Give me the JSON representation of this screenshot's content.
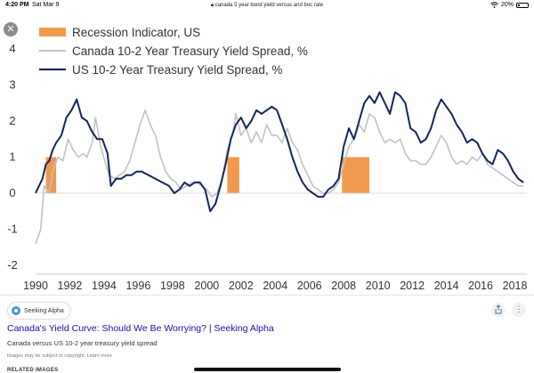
{
  "status_bar": {
    "time": "4:20 PM",
    "date": "Sat Mar 9",
    "url": "canada 5 year bond yield versus and boc rate",
    "battery": "20%"
  },
  "viewer": {
    "close_glyph": "✕",
    "share_icon": "share-icon",
    "more_glyph": "⋮"
  },
  "result": {
    "source": "Seeking Alpha",
    "title": "Canada's Yield Curve: Should We Be Worrying? | Seeking Alpha",
    "snippet": "Canada versus US 10-2 year treasury yield spread",
    "copyright": "Images may be subject to copyright. Learn more",
    "related_heading": "RELATED IMAGES"
  },
  "colors": {
    "recession": "#f09a50",
    "canada": "#c2c2c2",
    "us": "#12265c"
  },
  "chart_data": {
    "type": "line",
    "title": "",
    "xlabel": "",
    "ylabel": "",
    "xlim": [
      1990,
      2018.7
    ],
    "ylim": [
      -2,
      4
    ],
    "x_ticks": [
      "1990",
      "1992",
      "1994",
      "1996",
      "1998",
      "2000",
      "2002",
      "2004",
      "2006",
      "2008",
      "2010",
      "2012",
      "2014",
      "2016",
      "2018"
    ],
    "y_ticks": [
      "4",
      "3",
      "2",
      "1",
      "0",
      "-1",
      "-2"
    ],
    "legend": [
      "Recession Indicator, US",
      "Canada 10-2 Year Treasury Yield Spread, %",
      "US 10-2 Year Treasury Yield Spread, %"
    ],
    "recessions": [
      {
        "start": 1990.6,
        "end": 1991.2,
        "value": 1
      },
      {
        "start": 2001.2,
        "end": 2001.9,
        "value": 1
      },
      {
        "start": 2007.9,
        "end": 2009.5,
        "value": 1
      }
    ],
    "series": [
      {
        "name": "Canada 10-2 Year Treasury Yield Spread, %",
        "x": [
          1990.0,
          1990.3,
          1990.5,
          1990.8,
          1991.0,
          1991.3,
          1991.6,
          1991.9,
          1992.2,
          1992.5,
          1992.8,
          1993.0,
          1993.3,
          1993.5,
          1993.8,
          1994.1,
          1994.3,
          1994.6,
          1994.9,
          1995.2,
          1995.5,
          1995.8,
          1996.1,
          1996.4,
          1996.7,
          1997.0,
          1997.3,
          1997.6,
          1997.9,
          1998.2,
          1998.5,
          1998.8,
          1999.1,
          1999.4,
          1999.7,
          2000.0,
          2000.3,
          2000.6,
          2000.9,
          2001.2,
          2001.5,
          2001.7,
          2002.0,
          2002.3,
          2002.6,
          2002.9,
          2003.2,
          2003.5,
          2003.8,
          2004.1,
          2004.4,
          2004.7,
          2005.0,
          2005.3,
          2005.6,
          2005.9,
          2006.2,
          2006.5,
          2006.8,
          2007.1,
          2007.4,
          2007.7,
          2008.0,
          2008.3,
          2008.6,
          2008.9,
          2009.2,
          2009.5,
          2009.8,
          2010.1,
          2010.4,
          2010.7,
          2011.0,
          2011.3,
          2011.6,
          2011.9,
          2012.2,
          2012.5,
          2012.8,
          2013.1,
          2013.4,
          2013.7,
          2014.0,
          2014.3,
          2014.6,
          2014.9,
          2015.2,
          2015.5,
          2015.8,
          2016.1,
          2016.4,
          2016.7,
          2017.0,
          2017.3,
          2017.6,
          2017.9,
          2018.2,
          2018.5
        ],
        "values": [
          -1.4,
          -1.0,
          0.2,
          0.0,
          0.6,
          1.0,
          0.9,
          1.5,
          1.2,
          1.0,
          1.1,
          1.0,
          1.4,
          2.1,
          1.3,
          0.8,
          0.5,
          0.4,
          0.5,
          0.6,
          0.9,
          1.4,
          1.9,
          2.3,
          1.9,
          1.6,
          1.0,
          0.6,
          0.4,
          0.3,
          0.1,
          0.2,
          0.3,
          0.3,
          0.2,
          0.1,
          -0.1,
          0.0,
          0.4,
          1.2,
          1.6,
          2.2,
          1.6,
          1.8,
          1.4,
          1.7,
          1.4,
          1.9,
          1.6,
          1.6,
          1.4,
          1.8,
          1.4,
          1.2,
          0.8,
          0.5,
          0.2,
          0.1,
          0.0,
          0.0,
          0.1,
          0.3,
          0.8,
          1.3,
          1.5,
          1.9,
          1.7,
          2.2,
          2.1,
          1.7,
          1.4,
          1.5,
          1.4,
          1.5,
          1.1,
          0.9,
          0.9,
          0.8,
          0.8,
          1.0,
          1.3,
          1.6,
          1.4,
          1.0,
          0.8,
          0.9,
          0.8,
          1.0,
          0.9,
          1.1,
          0.8,
          0.7,
          0.6,
          0.5,
          0.4,
          0.3,
          0.2,
          0.2
        ]
      },
      {
        "name": "US 10-2 Year Treasury Yield Spread, %",
        "x": [
          1990.0,
          1990.2,
          1990.4,
          1990.6,
          1990.8,
          1991.0,
          1991.2,
          1991.5,
          1991.8,
          1992.1,
          1992.4,
          1992.7,
          1993.0,
          1993.3,
          1993.6,
          1993.9,
          1994.2,
          1994.4,
          1994.7,
          1995.0,
          1995.3,
          1995.6,
          1995.9,
          1996.2,
          1996.6,
          1997.0,
          1997.4,
          1997.8,
          1998.1,
          1998.4,
          1998.7,
          1999.0,
          1999.3,
          1999.6,
          1999.9,
          2000.2,
          2000.5,
          2000.8,
          2001.1,
          2001.4,
          2001.7,
          2002.0,
          2002.3,
          2002.6,
          2002.9,
          2003.2,
          2003.5,
          2003.8,
          2004.1,
          2004.4,
          2004.7,
          2005.0,
          2005.3,
          2005.6,
          2005.9,
          2006.2,
          2006.5,
          2006.8,
          2007.1,
          2007.4,
          2007.7,
          2008.0,
          2008.3,
          2008.6,
          2008.9,
          2009.2,
          2009.5,
          2009.8,
          2010.1,
          2010.4,
          2010.7,
          2011.0,
          2011.3,
          2011.6,
          2011.9,
          2012.2,
          2012.5,
          2012.8,
          2013.1,
          2013.4,
          2013.7,
          2014.0,
          2014.3,
          2014.6,
          2014.9,
          2015.2,
          2015.5,
          2015.8,
          2016.1,
          2016.4,
          2016.7,
          2017.0,
          2017.3,
          2017.6,
          2017.9,
          2018.2,
          2018.5
        ],
        "values": [
          0.0,
          0.2,
          0.4,
          0.8,
          0.9,
          1.2,
          1.4,
          1.6,
          2.1,
          2.3,
          2.6,
          2.1,
          2.0,
          1.7,
          1.5,
          1.5,
          1.1,
          0.2,
          0.4,
          0.4,
          0.5,
          0.5,
          0.6,
          0.6,
          0.5,
          0.4,
          0.3,
          0.2,
          0.0,
          0.1,
          0.3,
          0.2,
          0.3,
          0.3,
          0.1,
          -0.5,
          -0.3,
          0.2,
          0.8,
          1.5,
          1.9,
          2.1,
          1.8,
          2.0,
          2.3,
          2.2,
          2.3,
          2.4,
          2.3,
          1.9,
          1.5,
          1.0,
          0.6,
          0.3,
          0.1,
          0.0,
          -0.1,
          -0.1,
          0.1,
          0.2,
          0.4,
          1.3,
          1.8,
          1.5,
          2.0,
          2.5,
          2.7,
          2.5,
          2.8,
          2.5,
          2.2,
          2.8,
          2.7,
          2.5,
          1.8,
          1.7,
          1.4,
          1.5,
          1.8,
          2.3,
          2.6,
          2.4,
          2.2,
          1.9,
          1.7,
          1.4,
          1.5,
          1.4,
          1.1,
          0.9,
          0.8,
          1.2,
          1.1,
          0.9,
          0.6,
          0.4,
          0.3
        ]
      }
    ]
  }
}
